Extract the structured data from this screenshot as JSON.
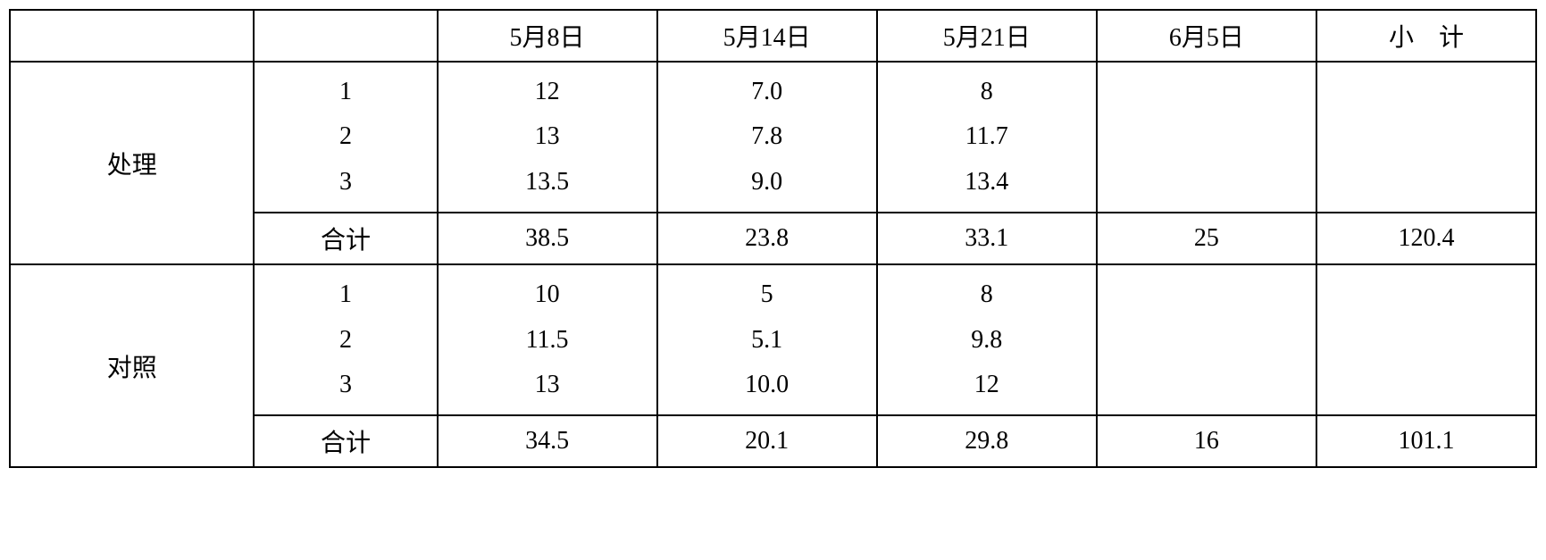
{
  "table": {
    "headers": {
      "col3": "5月8日",
      "col4": "5月14日",
      "col5": "5月21日",
      "col6": "6月5日",
      "col7": "小　计"
    },
    "groups": [
      {
        "label": "处理",
        "rows": [
          {
            "num": "1",
            "c3": "12",
            "c4": "7.0",
            "c5": "8",
            "c6": "",
            "c7": ""
          },
          {
            "num": "2",
            "c3": "13",
            "c4": "7.8",
            "c5": "11.7",
            "c6": "",
            "c7": ""
          },
          {
            "num": "3",
            "c3": "13.5",
            "c4": "9.0",
            "c5": "13.4",
            "c6": "",
            "c7": ""
          }
        ],
        "total": {
          "label": "合计",
          "c3": "38.5",
          "c4": "23.8",
          "c5": "33.1",
          "c6": "25",
          "c7": "120.4"
        }
      },
      {
        "label": "对照",
        "rows": [
          {
            "num": "1",
            "c3": "10",
            "c4": "5",
            "c5": "8",
            "c6": "",
            "c7": ""
          },
          {
            "num": "2",
            "c3": "11.5",
            "c4": "5.1",
            "c5": "9.8",
            "c6": "",
            "c7": ""
          },
          {
            "num": "3",
            "c3": "13",
            "c4": "10.0",
            "c5": "12",
            "c6": "",
            "c7": ""
          }
        ],
        "total": {
          "label": "合计",
          "c3": "34.5",
          "c4": "20.1",
          "c5": "29.8",
          "c6": "16",
          "c7": "101.1"
        }
      }
    ]
  }
}
